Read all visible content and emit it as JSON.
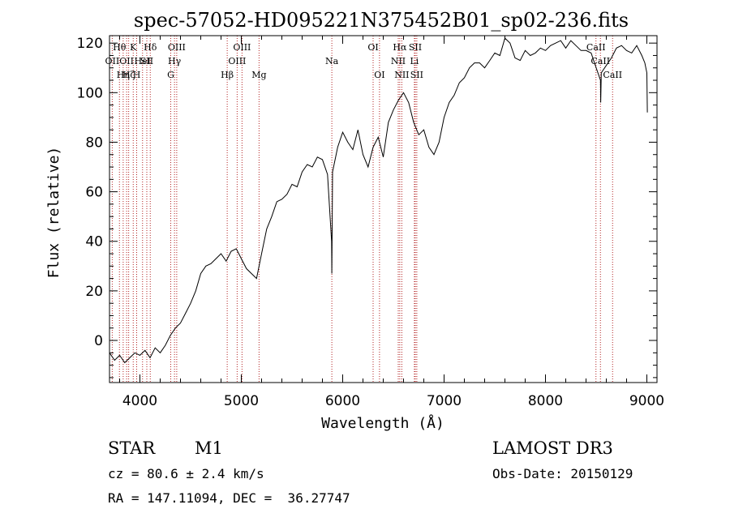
{
  "chart_data": {
    "type": "line",
    "title": "spec-57052-HD095221N375452B01_sp02-236.fits",
    "xlabel": "Wavelength (Å)",
    "ylabel": "Flux (relative)",
    "xlim": [
      3700,
      9100
    ],
    "ylim": [
      -17,
      123
    ],
    "x_ticks": [
      4000,
      5000,
      6000,
      7000,
      8000,
      9000
    ],
    "y_ticks": [
      0,
      20,
      40,
      60,
      80,
      100,
      120
    ],
    "grid": false,
    "series": [
      {
        "x": [
          3700,
          3750,
          3800,
          3850,
          3900,
          3950,
          4000,
          4050,
          4100,
          4150,
          4200,
          4250,
          4300,
          4350,
          4400,
          4450,
          4500,
          4550,
          4600,
          4650,
          4700,
          4750,
          4800,
          4850,
          4900,
          4950,
          5000,
          5050,
          5100,
          5150,
          5200,
          5250,
          5300,
          5350,
          5400,
          5450,
          5500,
          5550,
          5600,
          5650,
          5700,
          5750,
          5800,
          5850,
          5890,
          5893,
          5896,
          5900,
          5950,
          6000,
          6050,
          6100,
          6150,
          6200,
          6250,
          6300,
          6350,
          6400,
          6450,
          6500,
          6550,
          6600,
          6650,
          6700,
          6750,
          6800,
          6850,
          6900,
          6950,
          7000,
          7050,
          7100,
          7150,
          7200,
          7250,
          7300,
          7350,
          7400,
          7450,
          7500,
          7550,
          7600,
          7650,
          7700,
          7750,
          7800,
          7850,
          7900,
          7950,
          8000,
          8050,
          8100,
          8150,
          8200,
          8250,
          8300,
          8350,
          8400,
          8450,
          8500,
          8542,
          8545,
          8550,
          8600,
          8650,
          8700,
          8750,
          8800,
          8850,
          8900,
          8950,
          8980,
          9000,
          9005
        ],
        "y": [
          -5,
          -8,
          -6,
          -9,
          -7,
          -5,
          -6,
          -4,
          -7,
          -3,
          -5,
          -2,
          2,
          5,
          7,
          11,
          15,
          20,
          27,
          30,
          31,
          33,
          35,
          32,
          36,
          37,
          33,
          29,
          27,
          25,
          35,
          45,
          50,
          56,
          57,
          59,
          63,
          62,
          68,
          71,
          70,
          74,
          73,
          67,
          40,
          27,
          45,
          68,
          78,
          84,
          80,
          77,
          85,
          75,
          70,
          78,
          82,
          74,
          88,
          93,
          97,
          100,
          96,
          88,
          83,
          85,
          78,
          75,
          80,
          90,
          96,
          99,
          104,
          106,
          110,
          112,
          112,
          110,
          113,
          116,
          115,
          122,
          120,
          114,
          113,
          117,
          115,
          116,
          118,
          117,
          119,
          120,
          121,
          118,
          121,
          119,
          117,
          117,
          116,
          110,
          105,
          96,
          108,
          111,
          114,
          118,
          119,
          117,
          116,
          119,
          115,
          112,
          108,
          92
        ]
      }
    ],
    "lines": [
      {
        "w": 3727,
        "label": "OII",
        "row": 2
      },
      {
        "w": 3798,
        "label": "Hθ",
        "row": 1
      },
      {
        "w": 3835,
        "label": "Hη",
        "row": 3
      },
      {
        "w": 3869,
        "label": "OII",
        "row": 2
      },
      {
        "w": 3889,
        "label": "Hζ",
        "row": 3
      },
      {
        "w": 3934,
        "label": "K",
        "row": 1
      },
      {
        "w": 3968,
        "label": "H",
        "row": 3
      },
      {
        "w": 4026,
        "label": "HeI",
        "row": 2
      },
      {
        "w": 4068,
        "label": "SII",
        "row": 2
      },
      {
        "w": 4102,
        "label": "Hδ",
        "row": 1
      },
      {
        "w": 4304,
        "label": "G",
        "row": 3
      },
      {
        "w": 4341,
        "label": "Hγ",
        "row": 2
      },
      {
        "w": 4363,
        "label": "OIII",
        "row": 1
      },
      {
        "w": 4861,
        "label": "Hβ",
        "row": 3
      },
      {
        "w": 4959,
        "label": "OIII",
        "row": 2
      },
      {
        "w": 5007,
        "label": "OIII",
        "row": 1
      },
      {
        "w": 5175,
        "label": "Mg",
        "row": 3
      },
      {
        "w": 5893,
        "label": "Na",
        "row": 2
      },
      {
        "w": 6300,
        "label": "OI",
        "row": 1
      },
      {
        "w": 6363,
        "label": "OI",
        "row": 3
      },
      {
        "w": 6548,
        "label": "NII",
        "row": 2
      },
      {
        "w": 6563,
        "label": "Hα",
        "row": 1
      },
      {
        "w": 6583,
        "label": "NII",
        "row": 3
      },
      {
        "w": 6707,
        "label": "Li",
        "row": 2
      },
      {
        "w": 6716,
        "label": "SII",
        "row": 1
      },
      {
        "w": 6731,
        "label": "SII",
        "row": 3
      },
      {
        "w": 8498,
        "label": "CaII",
        "row": 1
      },
      {
        "w": 8542,
        "label": "CaII",
        "row": 2
      },
      {
        "w": 8662,
        "label": "CaII",
        "row": 3
      }
    ]
  },
  "info": {
    "object_class": "STAR",
    "subclass": "M1",
    "survey": "LAMOST DR3",
    "cz": "cz = 80.6 ± 2.4 km/s",
    "obs_date": "Obs-Date: 20150129",
    "coords": "RA = 147.11094, DEC =  36.27747"
  }
}
